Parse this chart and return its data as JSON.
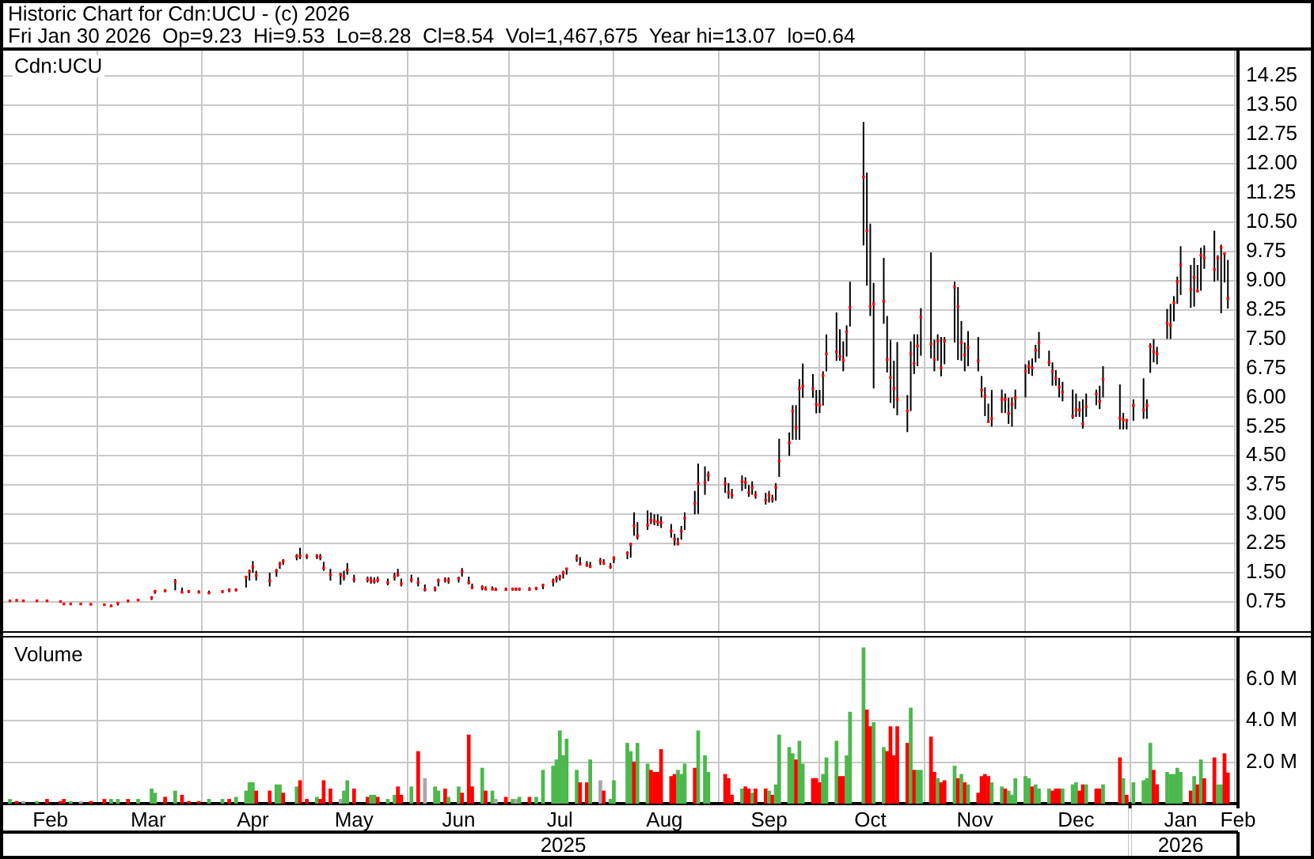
{
  "chart_data": [
    {
      "type": "scatter",
      "title": "Historic Chart for Cdn:UCU - (c) 2026",
      "subtitle": "Fri Jan 30 2026  Op=9.23  Hi=9.53  Lo=8.28  Cl=8.54  Vol=1,467,675  Year hi=13.07  lo=0.64",
      "annotations": [
        "Cdn:UCU"
      ],
      "x": [
        "2025-02-03",
        "2025-02-05",
        "2025-02-07",
        "2025-02-11",
        "2025-02-14",
        "2025-02-18",
        "2025-02-19",
        "2025-02-21",
        "2025-02-24",
        "2025-02-27",
        "2025-03-03",
        "2025-03-05",
        "2025-03-07",
        "2025-03-10",
        "2025-03-13",
        "2025-03-17",
        "2025-03-18",
        "2025-03-21",
        "2025-03-24",
        "2025-03-26",
        "2025-03-28",
        "2025-03-31",
        "2025-04-03",
        "2025-04-07",
        "2025-04-09",
        "2025-04-11",
        "2025-04-14",
        "2025-04-15",
        "2025-04-16",
        "2025-04-17",
        "2025-04-21",
        "2025-04-23",
        "2025-04-24",
        "2025-04-25",
        "2025-04-29",
        "2025-04-30",
        "2025-05-02",
        "2025-05-05",
        "2025-05-06",
        "2025-05-07",
        "2025-05-09",
        "2025-05-12",
        "2025-05-13",
        "2025-05-14",
        "2025-05-16",
        "2025-05-20",
        "2025-05-21",
        "2025-05-22",
        "2025-05-23",
        "2025-05-26",
        "2025-05-28",
        "2025-05-29",
        "2025-05-30",
        "2025-06-02",
        "2025-06-04",
        "2025-06-06",
        "2025-06-09",
        "2025-06-10",
        "2025-06-12",
        "2025-06-13",
        "2025-06-16",
        "2025-06-17",
        "2025-06-19",
        "2025-06-20",
        "2025-06-23",
        "2025-06-24",
        "2025-06-26",
        "2025-06-27",
        "2025-06-30",
        "2025-07-02",
        "2025-07-03",
        "2025-07-04",
        "2025-07-07",
        "2025-07-09",
        "2025-07-11",
        "2025-07-14",
        "2025-07-15",
        "2025-07-16",
        "2025-07-17",
        "2025-07-18",
        "2025-07-21",
        "2025-07-22",
        "2025-07-24",
        "2025-07-25",
        "2025-07-28",
        "2025-07-29",
        "2025-07-31",
        "2025-08-01",
        "2025-08-05",
        "2025-08-06",
        "2025-08-07",
        "2025-08-08",
        "2025-08-11",
        "2025-08-12",
        "2025-08-13",
        "2025-08-14",
        "2025-08-15",
        "2025-08-18",
        "2025-08-19",
        "2025-08-20",
        "2025-08-21",
        "2025-08-22",
        "2025-08-25",
        "2025-08-26",
        "2025-08-28",
        "2025-08-29",
        "2025-09-03",
        "2025-09-04",
        "2025-09-05",
        "2025-09-08",
        "2025-09-09",
        "2025-09-10",
        "2025-09-11",
        "2025-09-12",
        "2025-09-15",
        "2025-09-16",
        "2025-09-17",
        "2025-09-18",
        "2025-09-19",
        "2025-09-22",
        "2025-09-23",
        "2025-09-24",
        "2025-09-25",
        "2025-09-26",
        "2025-09-29",
        "2025-09-30",
        "2025-10-01",
        "2025-10-02",
        "2025-10-03",
        "2025-10-06",
        "2025-10-07",
        "2025-10-08",
        "2025-10-09",
        "2025-10-10",
        "2025-10-14",
        "2025-10-15",
        "2025-10-16",
        "2025-10-17",
        "2025-10-20",
        "2025-10-21",
        "2025-10-22",
        "2025-10-23",
        "2025-10-24",
        "2025-10-27",
        "2025-10-28",
        "2025-10-29",
        "2025-10-30",
        "2025-10-31",
        "2025-11-03",
        "2025-11-04",
        "2025-11-05",
        "2025-11-06",
        "2025-11-07",
        "2025-11-10",
        "2025-11-11",
        "2025-11-12",
        "2025-11-13",
        "2025-11-14",
        "2025-11-17",
        "2025-11-18",
        "2025-11-19",
        "2025-11-20",
        "2025-11-21",
        "2025-11-24",
        "2025-11-25",
        "2025-11-26",
        "2025-11-27",
        "2025-11-28",
        "2025-12-01",
        "2025-12-02",
        "2025-12-03",
        "2025-12-04",
        "2025-12-05",
        "2025-12-08",
        "2025-12-09",
        "2025-12-10",
        "2025-12-11",
        "2025-12-12",
        "2025-12-15",
        "2025-12-16",
        "2025-12-17",
        "2025-12-18",
        "2025-12-19",
        "2025-12-22",
        "2025-12-23",
        "2025-12-24",
        "2025-12-29",
        "2025-12-30",
        "2025-12-31",
        "2026-01-02",
        "2026-01-05",
        "2026-01-06",
        "2026-01-07",
        "2026-01-08",
        "2026-01-09",
        "2026-01-12",
        "2026-01-13",
        "2026-01-14",
        "2026-01-15",
        "2026-01-16",
        "2026-01-19",
        "2026-01-20",
        "2026-01-21",
        "2026-01-22",
        "2026-01-23",
        "2026-01-26",
        "2026-01-27",
        "2026-01-28",
        "2026-01-29",
        "2026-01-30"
      ],
      "values": [
        0.78,
        0.79,
        0.78,
        0.78,
        0.78,
        0.76,
        0.7,
        0.7,
        0.7,
        0.69,
        0.68,
        0.65,
        0.72,
        0.78,
        0.8,
        0.86,
        1.02,
        1.04,
        1.27,
        1.0,
        1.02,
        1.0,
        0.98,
        1.02,
        1.06,
        1.06,
        1.39,
        1.53,
        1.65,
        1.43,
        1.3,
        1.55,
        1.72,
        1.8,
        1.92,
        1.93,
        1.92,
        1.93,
        1.9,
        1.62,
        1.45,
        1.45,
        1.4,
        1.57,
        1.33,
        1.33,
        1.3,
        1.28,
        1.32,
        1.25,
        1.4,
        1.45,
        1.22,
        1.32,
        1.25,
        1.07,
        1.08,
        1.3,
        1.32,
        1.3,
        1.35,
        1.53,
        1.25,
        1.12,
        1.12,
        1.08,
        1.08,
        1.07,
        1.07,
        1.08,
        1.08,
        1.08,
        1.07,
        1.1,
        1.18,
        1.28,
        1.35,
        1.4,
        1.5,
        1.6,
        1.87,
        1.72,
        1.7,
        1.66,
        1.8,
        1.74,
        1.65,
        1.87,
        2.0,
        2.23,
        2.7,
        2.44,
        2.72,
        2.85,
        2.82,
        2.8,
        2.78,
        2.57,
        2.36,
        2.25,
        2.57,
        2.9,
        3.28,
        3.79,
        3.82,
        4.0,
        3.79,
        3.56,
        3.49,
        3.85,
        3.82,
        3.56,
        3.69,
        3.49,
        3.36,
        3.49,
        3.39,
        3.69,
        4.37,
        4.84,
        5.65,
        5.22,
        6.23,
        6.29,
        6.23,
        5.82,
        5.8,
        6.56,
        7.12,
        7.17,
        7.05,
        6.95,
        7.68,
        8.31,
        11.66,
        10.28,
        8.33,
        8.4,
        8.47,
        6.97,
        6.51,
        6.23,
        5.95,
        5.65,
        7.12,
        6.87,
        7.32,
        8.06,
        7.37,
        6.97,
        7.45,
        6.76,
        7.45,
        8.83,
        8.33,
        7.41,
        7.09,
        7.28,
        6.94,
        6.19,
        6.03,
        5.38,
        5.46,
        5.95,
        5.95,
        5.59,
        5.82,
        5.99,
        6.67,
        6.8,
        6.76,
        7.21,
        7.41,
        6.9,
        6.67,
        6.49,
        6.26,
        6.13,
        5.52,
        5.68,
        5.68,
        5.32,
        5.76,
        6.09,
        5.9,
        6.47,
        5.47,
        5.42,
        5.41,
        5.79,
        5.68,
        5.79,
        7.31,
        7.17,
        7.12,
        7.9,
        7.85,
        8.43,
        8.97,
        9.4,
        8.77,
        9.08,
        8.73,
        9.65,
        9.58,
        9.28,
        9.58,
        9.85,
        9.69,
        8.54
      ],
      "errors": [
        [
          0.76,
          0.81
        ],
        [
          0.77,
          0.82
        ],
        [
          0.77,
          0.81
        ],
        [
          0.76,
          0.81
        ],
        [
          0.76,
          0.81
        ],
        [
          0.74,
          0.79
        ],
        [
          0.68,
          0.72
        ],
        [
          0.68,
          0.72
        ],
        [
          0.67,
          0.72
        ],
        [
          0.67,
          0.72
        ],
        [
          0.66,
          0.7
        ],
        [
          0.64,
          0.68
        ],
        [
          0.66,
          0.74
        ],
        [
          0.74,
          0.8
        ],
        [
          0.77,
          0.82
        ],
        [
          0.8,
          0.9
        ],
        [
          0.96,
          1.06
        ],
        [
          1.0,
          1.08
        ],
        [
          1.05,
          1.34
        ],
        [
          0.98,
          1.12
        ],
        [
          0.98,
          1.06
        ],
        [
          0.98,
          1.05
        ],
        [
          0.96,
          1.04
        ],
        [
          0.98,
          1.04
        ],
        [
          1.0,
          1.1
        ],
        [
          1.02,
          1.1
        ],
        [
          1.12,
          1.42
        ],
        [
          1.3,
          1.58
        ],
        [
          1.5,
          1.8
        ],
        [
          1.3,
          1.55
        ],
        [
          1.15,
          1.5
        ],
        [
          1.4,
          1.6
        ],
        [
          1.6,
          1.78
        ],
        [
          1.7,
          1.85
        ],
        [
          1.82,
          1.98
        ],
        [
          1.85,
          2.14
        ],
        [
          1.85,
          1.98
        ],
        [
          1.85,
          1.98
        ],
        [
          1.82,
          1.98
        ],
        [
          1.55,
          1.78
        ],
        [
          1.3,
          1.6
        ],
        [
          1.19,
          1.5
        ],
        [
          1.3,
          1.55
        ],
        [
          1.45,
          1.75
        ],
        [
          1.25,
          1.45
        ],
        [
          1.25,
          1.4
        ],
        [
          1.22,
          1.4
        ],
        [
          1.22,
          1.38
        ],
        [
          1.25,
          1.4
        ],
        [
          1.18,
          1.35
        ],
        [
          1.3,
          1.5
        ],
        [
          1.4,
          1.6
        ],
        [
          1.15,
          1.35
        ],
        [
          1.25,
          1.45
        ],
        [
          1.15,
          1.38
        ],
        [
          1.02,
          1.2
        ],
        [
          1.02,
          1.15
        ],
        [
          1.15,
          1.35
        ],
        [
          1.25,
          1.38
        ],
        [
          1.22,
          1.38
        ],
        [
          1.25,
          1.4
        ],
        [
          1.4,
          1.62
        ],
        [
          1.2,
          1.4
        ],
        [
          1.08,
          1.22
        ],
        [
          1.05,
          1.18
        ],
        [
          1.05,
          1.15
        ],
        [
          1.05,
          1.15
        ],
        [
          1.04,
          1.12
        ],
        [
          1.04,
          1.12
        ],
        [
          1.04,
          1.12
        ],
        [
          1.04,
          1.12
        ],
        [
          1.04,
          1.12
        ],
        [
          1.04,
          1.13
        ],
        [
          1.05,
          1.14
        ],
        [
          1.08,
          1.22
        ],
        [
          1.15,
          1.35
        ],
        [
          1.25,
          1.42
        ],
        [
          1.3,
          1.45
        ],
        [
          1.35,
          1.55
        ],
        [
          1.45,
          1.62
        ],
        [
          1.78,
          1.97
        ],
        [
          1.7,
          1.9
        ],
        [
          1.65,
          1.8
        ],
        [
          1.62,
          1.78
        ],
        [
          1.7,
          1.88
        ],
        [
          1.7,
          1.85
        ],
        [
          1.6,
          1.75
        ],
        [
          1.75,
          1.92
        ],
        [
          1.85,
          2.05
        ],
        [
          1.89,
          2.27
        ],
        [
          2.45,
          3.05
        ],
        [
          2.35,
          2.8
        ],
        [
          2.6,
          3.1
        ],
        [
          2.75,
          3.05
        ],
        [
          2.72,
          3.0
        ],
        [
          2.7,
          3.0
        ],
        [
          2.65,
          2.95
        ],
        [
          2.4,
          2.75
        ],
        [
          2.2,
          2.5
        ],
        [
          2.2,
          2.4
        ],
        [
          2.35,
          2.7
        ],
        [
          2.6,
          3.05
        ],
        [
          3.0,
          3.6
        ],
        [
          3.01,
          4.3
        ],
        [
          3.5,
          4.23
        ],
        [
          3.85,
          4.1
        ],
        [
          3.55,
          3.95
        ],
        [
          3.4,
          3.8
        ],
        [
          3.4,
          3.65
        ],
        [
          3.6,
          4.0
        ],
        [
          3.65,
          3.95
        ],
        [
          3.45,
          3.75
        ],
        [
          3.5,
          3.85
        ],
        [
          3.4,
          3.6
        ],
        [
          3.25,
          3.55
        ],
        [
          3.3,
          3.6
        ],
        [
          3.3,
          3.5
        ],
        [
          3.35,
          3.8
        ],
        [
          3.96,
          4.94
        ],
        [
          4.5,
          5.1
        ],
        [
          4.91,
          5.8
        ],
        [
          4.91,
          5.8
        ],
        [
          4.91,
          6.47
        ],
        [
          5.99,
          6.87
        ],
        [
          5.99,
          6.6
        ],
        [
          5.59,
          6.19
        ],
        [
          5.6,
          6.19
        ],
        [
          5.79,
          6.67
        ],
        [
          6.67,
          7.62
        ],
        [
          6.94,
          8.18
        ],
        [
          6.94,
          7.75
        ],
        [
          6.67,
          7.44
        ],
        [
          7.05,
          7.85
        ],
        [
          7.82,
          8.97
        ],
        [
          9.9,
          13.07
        ],
        [
          8.87,
          11.77
        ],
        [
          8.09,
          10.46
        ],
        [
          6.23,
          8.94
        ],
        [
          7.89,
          9.58
        ],
        [
          6.64,
          8.09
        ],
        [
          5.86,
          7.48
        ],
        [
          5.72,
          6.94
        ],
        [
          5.54,
          7.42
        ],
        [
          5.11,
          6.06
        ],
        [
          5.65,
          7.44
        ],
        [
          6.6,
          7.62
        ],
        [
          6.8,
          7.62
        ],
        [
          7.07,
          8.29
        ],
        [
          7.0,
          9.72
        ],
        [
          6.67,
          7.48
        ],
        [
          6.94,
          7.62
        ],
        [
          6.54,
          7.55
        ],
        [
          6.85,
          7.55
        ],
        [
          7.41,
          8.97
        ],
        [
          6.96,
          8.83
        ],
        [
          6.94,
          7.96
        ],
        [
          6.67,
          7.41
        ],
        [
          6.8,
          7.7
        ],
        [
          6.67,
          7.55
        ],
        [
          6.0,
          6.55
        ],
        [
          5.52,
          6.26
        ],
        [
          5.35,
          5.84
        ],
        [
          5.25,
          6.19
        ],
        [
          5.6,
          6.2
        ],
        [
          5.6,
          6.1
        ],
        [
          5.32,
          5.99
        ],
        [
          5.25,
          6.0
        ],
        [
          5.7,
          6.2
        ],
        [
          6.0,
          6.85
        ],
        [
          6.6,
          6.95
        ],
        [
          6.55,
          7.0
        ],
        [
          6.9,
          7.35
        ],
        [
          7.0,
          7.68
        ],
        [
          6.8,
          7.2
        ],
        [
          6.3,
          6.9
        ],
        [
          6.3,
          6.7
        ],
        [
          6.0,
          6.5
        ],
        [
          5.9,
          6.4
        ],
        [
          5.45,
          6.2
        ],
        [
          5.5,
          6.1
        ],
        [
          5.5,
          5.9
        ],
        [
          5.2,
          5.95
        ],
        [
          5.5,
          6.1
        ],
        [
          5.8,
          6.2
        ],
        [
          5.7,
          6.3
        ],
        [
          6.0,
          6.8
        ],
        [
          5.18,
          6.33
        ],
        [
          5.18,
          5.6
        ],
        [
          5.18,
          5.45
        ],
        [
          5.4,
          5.95
        ],
        [
          5.45,
          6.49
        ],
        [
          5.45,
          5.95
        ],
        [
          6.63,
          7.39
        ],
        [
          6.9,
          7.5
        ],
        [
          6.85,
          7.3
        ],
        [
          7.5,
          8.27
        ],
        [
          7.5,
          8.4
        ],
        [
          7.95,
          8.6
        ],
        [
          8.4,
          9.1
        ],
        [
          8.63,
          9.88
        ],
        [
          8.3,
          9.4
        ],
        [
          8.33,
          9.58
        ],
        [
          8.7,
          9.4
        ],
        [
          8.74,
          9.84
        ],
        [
          9.3,
          9.9
        ],
        [
          8.97,
          10.28
        ],
        [
          9.0,
          9.65
        ],
        [
          8.16,
          9.92
        ],
        [
          8.95,
          9.72
        ],
        [
          8.28,
          9.53
        ]
      ],
      "color": "#ff0000",
      "marker": "square",
      "xlim": [
        "2025-02-01",
        "2026-02-02"
      ],
      "xticks": [
        {
          "value": "2025-03-01",
          "label": null
        },
        {
          "value": "2025-04-01",
          "label": null
        },
        {
          "value": "2025-05-01",
          "label": null
        },
        {
          "value": "2025-06-01",
          "label": null
        },
        {
          "value": "2025-07-01",
          "label": null
        },
        {
          "value": "2025-08-01",
          "label": null
        },
        {
          "value": "2025-09-01",
          "label": null
        },
        {
          "value": "2025-10-01",
          "label": null
        },
        {
          "value": "2025-11-01",
          "label": null
        },
        {
          "value": "2025-12-01",
          "label": null
        },
        {
          "value": "2026-01-01",
          "label": null
        },
        {
          "value": "2026-02-01",
          "label": null
        }
      ],
      "ylim": [
        0,
        14.9
      ],
      "yticks": [
        0.75,
        {
          "value": 1.5,
          "label": "1.50"
        },
        2.25,
        {
          "value": 3,
          "label": "3.00"
        },
        3.75,
        {
          "value": 4.5,
          "label": "4.50"
        },
        5.25,
        {
          "value": 6,
          "label": "6.00"
        },
        6.75,
        {
          "value": 7.5,
          "label": "7.50"
        },
        8.25,
        {
          "value": 9,
          "label": "9.00"
        },
        9.75,
        {
          "value": 10.5,
          "label": "10.50"
        },
        11.25,
        {
          "value": 12,
          "label": "12.00"
        },
        12.75,
        {
          "value": 13.5,
          "label": "13.50"
        },
        14.25
      ],
      "grid": true,
      "tick_labels": "y"
    },
    {
      "type": "bar",
      "title": "Volume",
      "x": [
        "2025-02-03",
        "2025-02-05",
        "2025-02-07",
        "2025-02-11",
        "2025-02-14",
        "2025-02-18",
        "2025-02-19",
        "2025-02-21",
        "2025-02-24",
        "2025-02-27",
        "2025-03-03",
        "2025-03-05",
        "2025-03-07",
        "2025-03-10",
        "2025-03-13",
        "2025-03-17",
        "2025-03-18",
        "2025-03-21",
        "2025-03-24",
        "2025-03-26",
        "2025-03-28",
        "2025-03-31",
        "2025-04-03",
        "2025-04-07",
        "2025-04-09",
        "2025-04-11",
        "2025-04-14",
        "2025-04-15",
        "2025-04-16",
        "2025-04-17",
        "2025-04-21",
        "2025-04-23",
        "2025-04-24",
        "2025-04-25",
        "2025-04-29",
        "2025-04-30",
        "2025-05-02",
        "2025-05-05",
        "2025-05-06",
        "2025-05-07",
        "2025-05-09",
        "2025-05-12",
        "2025-05-13",
        "2025-05-14",
        "2025-05-16",
        "2025-05-20",
        "2025-05-21",
        "2025-05-22",
        "2025-05-23",
        "2025-05-26",
        "2025-05-28",
        "2025-05-29",
        "2025-05-30",
        "2025-06-02",
        "2025-06-04",
        "2025-06-06",
        "2025-06-09",
        "2025-06-10",
        "2025-06-12",
        "2025-06-13",
        "2025-06-16",
        "2025-06-17",
        "2025-06-19",
        "2025-06-20",
        "2025-06-23",
        "2025-06-24",
        "2025-06-26",
        "2025-06-27",
        "2025-06-30",
        "2025-07-02",
        "2025-07-03",
        "2025-07-04",
        "2025-07-07",
        "2025-07-09",
        "2025-07-11",
        "2025-07-14",
        "2025-07-15",
        "2025-07-16",
        "2025-07-17",
        "2025-07-18",
        "2025-07-21",
        "2025-07-22",
        "2025-07-24",
        "2025-07-25",
        "2025-07-28",
        "2025-07-29",
        "2025-07-31",
        "2025-08-01",
        "2025-08-05",
        "2025-08-06",
        "2025-08-07",
        "2025-08-08",
        "2025-08-11",
        "2025-08-12",
        "2025-08-13",
        "2025-08-14",
        "2025-08-15",
        "2025-08-18",
        "2025-08-19",
        "2025-08-20",
        "2025-08-21",
        "2025-08-22",
        "2025-08-25",
        "2025-08-26",
        "2025-08-28",
        "2025-08-29",
        "2025-09-03",
        "2025-09-04",
        "2025-09-05",
        "2025-09-08",
        "2025-09-09",
        "2025-09-10",
        "2025-09-11",
        "2025-09-12",
        "2025-09-15",
        "2025-09-16",
        "2025-09-17",
        "2025-09-18",
        "2025-09-19",
        "2025-09-22",
        "2025-09-23",
        "2025-09-24",
        "2025-09-25",
        "2025-09-26",
        "2025-09-29",
        "2025-09-30",
        "2025-10-01",
        "2025-10-02",
        "2025-10-03",
        "2025-10-06",
        "2025-10-07",
        "2025-10-08",
        "2025-10-09",
        "2025-10-10",
        "2025-10-14",
        "2025-10-15",
        "2025-10-16",
        "2025-10-17",
        "2025-10-20",
        "2025-10-21",
        "2025-10-22",
        "2025-10-23",
        "2025-10-24",
        "2025-10-27",
        "2025-10-28",
        "2025-10-29",
        "2025-10-30",
        "2025-10-31",
        "2025-11-03",
        "2025-11-04",
        "2025-11-05",
        "2025-11-06",
        "2025-11-07",
        "2025-11-10",
        "2025-11-11",
        "2025-11-12",
        "2025-11-13",
        "2025-11-14",
        "2025-11-17",
        "2025-11-18",
        "2025-11-19",
        "2025-11-20",
        "2025-11-21",
        "2025-11-24",
        "2025-11-25",
        "2025-11-26",
        "2025-11-27",
        "2025-11-28",
        "2025-12-01",
        "2025-12-02",
        "2025-12-03",
        "2025-12-04",
        "2025-12-05",
        "2025-12-08",
        "2025-12-09",
        "2025-12-10",
        "2025-12-11",
        "2025-12-12",
        "2025-12-15",
        "2025-12-16",
        "2025-12-17",
        "2025-12-18",
        "2025-12-19",
        "2025-12-22",
        "2025-12-23",
        "2025-12-24",
        "2025-12-29",
        "2025-12-30",
        "2025-12-31",
        "2026-01-02",
        "2026-01-05",
        "2026-01-06",
        "2026-01-07",
        "2026-01-08",
        "2026-01-09",
        "2026-01-12",
        "2026-01-13",
        "2026-01-14",
        "2026-01-15",
        "2026-01-16",
        "2026-01-19",
        "2026-01-20",
        "2026-01-21",
        "2026-01-22",
        "2026-01-23",
        "2026-01-26",
        "2026-01-27",
        "2026-01-28",
        "2026-01-29",
        "2026-01-30"
      ],
      "values": [
        0.2,
        0.1,
        0.1,
        0.1,
        0.2,
        0.1,
        0.2,
        0.1,
        0.1,
        0.1,
        0.2,
        0.2,
        0.2,
        0.2,
        0.2,
        0.7,
        0.5,
        0.3,
        0.6,
        0.4,
        0.1,
        0.1,
        0.2,
        0.2,
        0.2,
        0.3,
        0.6,
        1.0,
        1.0,
        0.6,
        0.6,
        0.9,
        0.9,
        0.5,
        0.8,
        1.1,
        0.2,
        0.3,
        0.2,
        1.1,
        0.7,
        0.2,
        0.6,
        1.1,
        0.7,
        0.3,
        0.4,
        0.4,
        0.3,
        0.2,
        0.4,
        0.8,
        0.4,
        0.8,
        2.5,
        1.2,
        0.8,
        0.6,
        0.7,
        0.3,
        0.8,
        0.5,
        3.3,
        0.8,
        1.7,
        0.6,
        0.6,
        0.2,
        0.3,
        0.2,
        0.2,
        0.3,
        0.3,
        0.3,
        1.6,
        1.8,
        2.1,
        3.5,
        2.3,
        3.1,
        1.6,
        1.0,
        1.0,
        2.1,
        1.1,
        0.6,
        0.2,
        1.1,
        2.9,
        2.5,
        2.0,
        2.9,
        1.9,
        1.6,
        1.5,
        1.5,
        2.6,
        1.3,
        1.4,
        1.6,
        1.4,
        1.9,
        1.7,
        3.5,
        2.3,
        1.5,
        1.4,
        1.2,
        0.4,
        0.7,
        0.8,
        0.7,
        0.5,
        0.7,
        0.7,
        0.6,
        0.4,
        0.9,
        3.3,
        2.7,
        2.4,
        2.1,
        3.0,
        1.9,
        1.2,
        1.2,
        1.0,
        1.4,
        2.2,
        3.0,
        1.3,
        1.3,
        2.3,
        4.4,
        7.5,
        4.5,
        3.7,
        3.9,
        2.7,
        2.5,
        3.7,
        2.3,
        3.7,
        2.9,
        4.6,
        1.6,
        1.6,
        1.6,
        3.2,
        1.5,
        1.2,
        1.0,
        1.1,
        1.8,
        1.2,
        1.4,
        1.0,
        0.9,
        0.5,
        1.3,
        1.4,
        1.3,
        1.0,
        0.8,
        0.7,
        0.6,
        0.4,
        1.2,
        1.3,
        1.2,
        0.8,
        0.9,
        0.7,
        0.7,
        0.6,
        0.7,
        0.7,
        0.7,
        0.9,
        1.0,
        0.6,
        0.9,
        0.9,
        0.7,
        0.7,
        0.9,
        2.2,
        1.2,
        0.4,
        1.0,
        1.1,
        1.2,
        2.9,
        1.6,
        0.9,
        1.5,
        1.4,
        1.4,
        1.7,
        1.5,
        0.6,
        1.3,
        0.9,
        2.1,
        1.2,
        2.2,
        0.9,
        0.9,
        2.4,
        1.467675
      ],
      "colors": [
        "#4cb84c",
        "#ff0000",
        "#a8a8a8",
        "#4cb84c",
        "#ff0000",
        "#ff0000",
        "#ff0000",
        "#4cb84c",
        "#a8a8a8",
        "#ff0000",
        "#ff0000",
        "#4cb84c",
        "#4cb84c",
        "#ff0000",
        "#4cb84c",
        "#4cb84c",
        "#4cb84c",
        "#ff0000",
        "#4cb84c",
        "#ff0000",
        "#ff0000",
        "#ff0000",
        "#4cb84c",
        "#4cb84c",
        "#ff0000",
        "#4cb84c",
        "#4cb84c",
        "#4cb84c",
        "#4cb84c",
        "#ff0000",
        "#ff0000",
        "#4cb84c",
        "#4cb84c",
        "#ff0000",
        "#4cb84c",
        "#ff0000",
        "#ff0000",
        "#4cb84c",
        "#ff0000",
        "#ff0000",
        "#ff0000",
        "#a8a8a8",
        "#4cb84c",
        "#4cb84c",
        "#ff0000",
        "#ff0000",
        "#4cb84c",
        "#4cb84c",
        "#ff0000",
        "#4cb84c",
        "#4cb84c",
        "#ff0000",
        "#ff0000",
        "#4cb84c",
        "#ff0000",
        "#a8a8a8",
        "#4cb84c",
        "#4cb84c",
        "#ff0000",
        "#4cb84c",
        "#4cb84c",
        "#ff0000",
        "#ff0000",
        "#ff0000",
        "#4cb84c",
        "#ff0000",
        "#4cb84c",
        "#a8a8a8",
        "#ff0000",
        "#4cb84c",
        "#a8a8a8",
        "#4cb84c",
        "#ff0000",
        "#4cb84c",
        "#4cb84c",
        "#4cb84c",
        "#4cb84c",
        "#4cb84c",
        "#4cb84c",
        "#4cb84c",
        "#4cb84c",
        "#ff0000",
        "#ff0000",
        "#4cb84c",
        "#a8a8a8",
        "#ff0000",
        "#4cb84c",
        "#4cb84c",
        "#4cb84c",
        "#4cb84c",
        "#ff0000",
        "#4cb84c",
        "#4cb84c",
        "#ff0000",
        "#ff0000",
        "#ff0000",
        "#ff0000",
        "#ff0000",
        "#ff0000",
        "#4cb84c",
        "#4cb84c",
        "#4cb84c",
        "#ff0000",
        "#4cb84c",
        "#4cb84c",
        "#4cb84c",
        "#ff0000",
        "#ff0000",
        "#ff0000",
        "#4cb84c",
        "#ff0000",
        "#ff0000",
        "#4cb84c",
        "#ff0000",
        "#ff0000",
        "#4cb84c",
        "#ff0000",
        "#4cb84c",
        "#4cb84c",
        "#4cb84c",
        "#4cb84c",
        "#ff0000",
        "#4cb84c",
        "#4cb84c",
        "#ff0000",
        "#ff0000",
        "#ff0000",
        "#4cb84c",
        "#4cb84c",
        "#4cb84c",
        "#ff0000",
        "#ff0000",
        "#4cb84c",
        "#4cb84c",
        "#4cb84c",
        "#ff0000",
        "#ff0000",
        "#4cb84c",
        "#4cb84c",
        "#ff0000",
        "#ff0000",
        "#ff0000",
        "#ff0000",
        "#ff0000",
        "#4cb84c",
        "#ff0000",
        "#4cb84c",
        "#4cb84c",
        "#ff0000",
        "#ff0000",
        "#4cb84c",
        "#ff0000",
        "#ff0000",
        "#4cb84c",
        "#ff0000",
        "#4cb84c",
        "#ff0000",
        "#4cb84c",
        "#ff0000",
        "#ff0000",
        "#ff0000",
        "#ff0000",
        "#4cb84c",
        "#4cb84c",
        "#ff0000",
        "#4cb84c",
        "#4cb84c",
        "#4cb84c",
        "#4cb84c",
        "#4cb84c",
        "#ff0000",
        "#4cb84c",
        "#4cb84c",
        "#4cb84c",
        "#ff0000",
        "#ff0000",
        "#ff0000",
        "#4cb84c",
        "#4cb84c",
        "#4cb84c",
        "#ff0000",
        "#ff0000",
        "#4cb84c",
        "#ff0000",
        "#ff0000",
        "#4cb84c",
        "#ff0000",
        "#4cb84c",
        "#ff0000",
        "#4cb84c",
        "#4cb84c",
        "#4cb84c",
        "#4cb84c",
        "#ff0000",
        "#ff0000",
        "#4cb84c",
        "#4cb84c",
        "#4cb84c",
        "#4cb84c",
        "#4cb84c",
        "#ff0000",
        "#4cb84c",
        "#ff0000",
        "#4cb84c",
        "#ff0000",
        "#ff0000",
        "#4cb84c",
        "#4cb84c",
        "#ff0000",
        "#ff0000"
      ],
      "xlim": [
        "2025-02-01",
        "2026-02-02"
      ],
      "xticks": [
        {
          "value": "2025-02-15",
          "label": "Feb"
        },
        {
          "value": "2025-03-01",
          "label": null
        },
        {
          "value": "2025-03-16",
          "label": "Mar"
        },
        {
          "value": "2025-04-01",
          "label": null
        },
        {
          "value": "2025-04-16",
          "label": "Apr"
        },
        {
          "value": "2025-05-01",
          "label": null
        },
        {
          "value": "2025-05-16",
          "label": "May"
        },
        {
          "value": "2025-06-01",
          "label": null
        },
        {
          "value": "2025-06-16",
          "label": "Jun"
        },
        {
          "value": "2025-07-01",
          "label": null
        },
        {
          "value": "2025-07-16",
          "label": "Jul"
        },
        {
          "value": "2025-08-01",
          "label": null
        },
        {
          "value": "2025-08-16",
          "label": "Aug"
        },
        {
          "value": "2025-09-01",
          "label": null
        },
        {
          "value": "2025-09-16",
          "label": "Sep"
        },
        {
          "value": "2025-10-01",
          "label": null
        },
        {
          "value": "2025-10-16",
          "label": "Oct"
        },
        {
          "value": "2025-11-01",
          "label": null
        },
        {
          "value": "2025-11-16",
          "label": "Nov"
        },
        {
          "value": "2025-12-01",
          "label": null
        },
        {
          "value": "2025-12-16",
          "label": "Dec"
        },
        {
          "value": "2026-01-01",
          "label": null
        },
        {
          "value": "2026-01-16",
          "label": "Jan"
        },
        {
          "value": "2026-02-01",
          "label": null
        },
        {
          "value": "2026-02-02",
          "label": "Feb"
        }
      ],
      "x2lim": [
        "2025-02-01",
        "2026-02-02"
      ],
      "x2ticks": [
        {
          "value": "2025-07-17",
          "label": "2025"
        },
        {
          "value": "2026-01-01",
          "label": null
        },
        {
          "value": "2026-01-16",
          "label": "2026"
        }
      ],
      "ylim": [
        0,
        8
      ],
      "yticks": [
        {
          "value": 2,
          "label": "2.0 M"
        },
        {
          "value": 4,
          "label": "4.0 M"
        },
        {
          "value": 6,
          "label": "6.0 M"
        }
      ],
      "grid": true
    }
  ]
}
